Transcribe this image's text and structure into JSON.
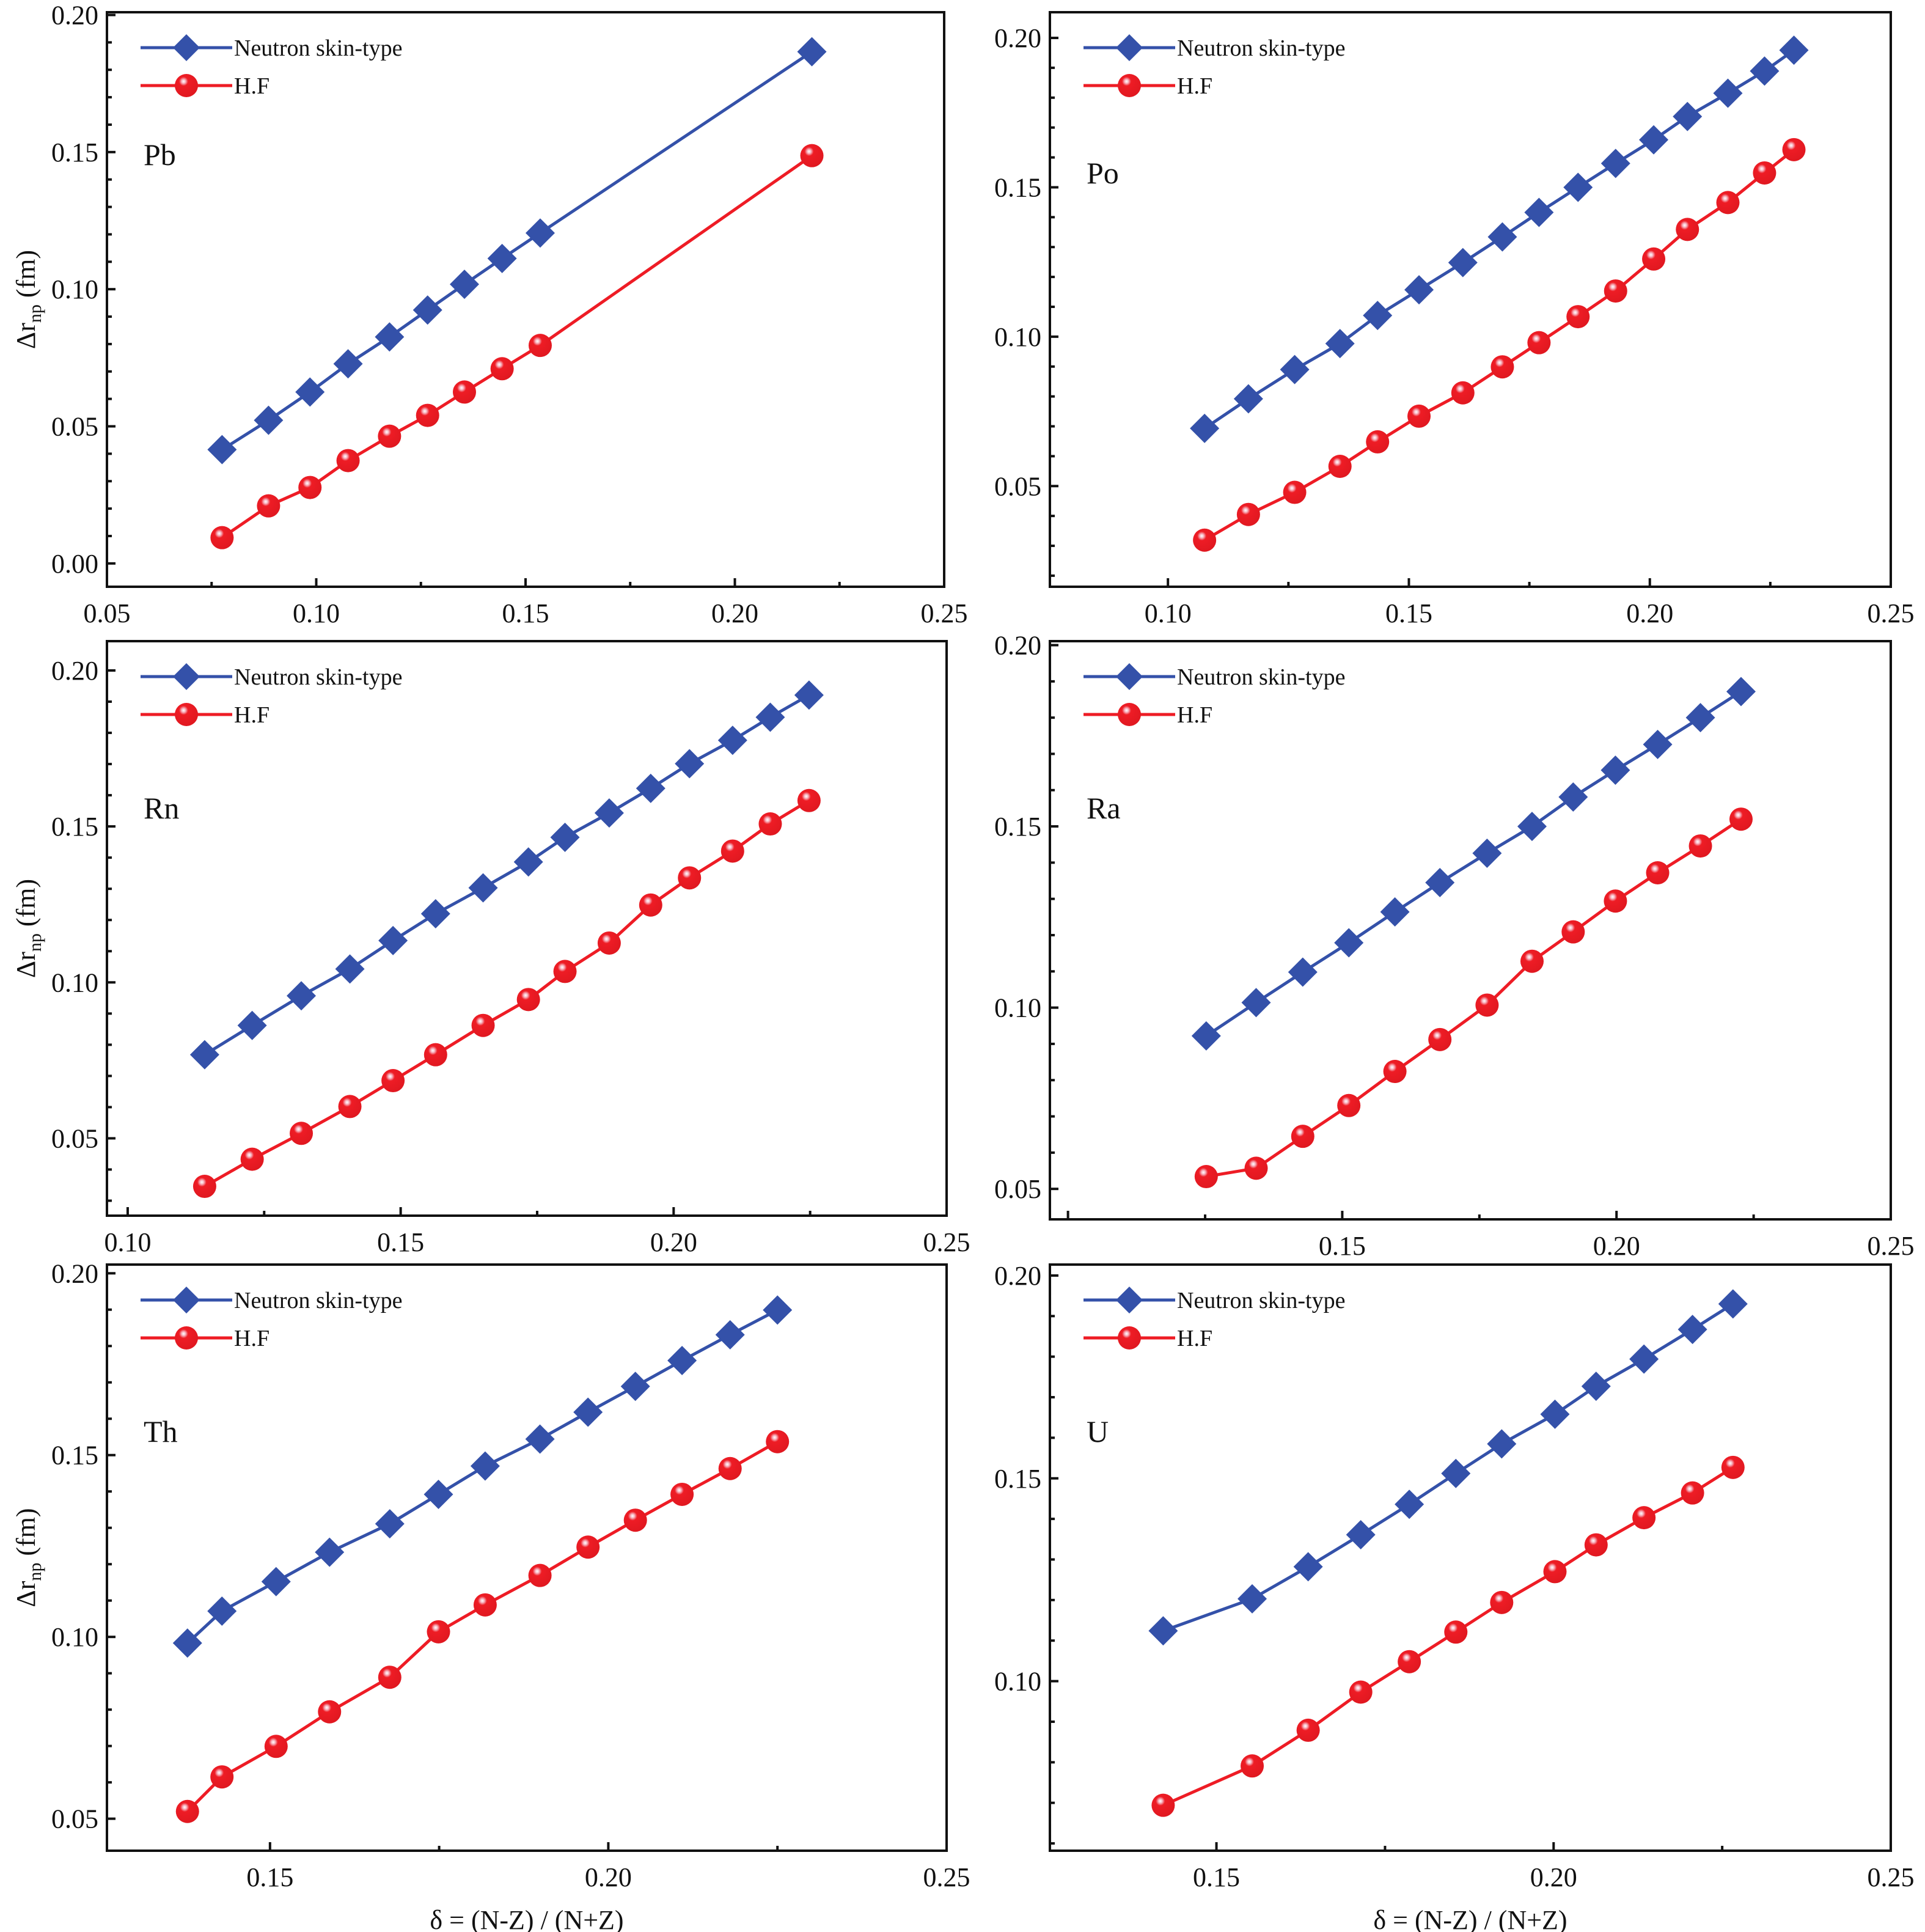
{
  "figure": {
    "x_axis_title": "δ = (N-Z) / (N+Z)",
    "y_axis_title_main": "Δr",
    "y_axis_title_sub": "np",
    "y_axis_title_unit": " (fm)",
    "series_colors": {
      "Neutron skin-type": "#3451A9",
      "H.F": "#EE1C25"
    }
  },
  "chart_data": [
    {
      "type": "line",
      "title": "Pb",
      "xlabel": "",
      "ylabel": "Δr_np (fm)",
      "xlim": [
        0.05,
        0.25
      ],
      "ylim": [
        -0.0085,
        0.201
      ],
      "xticks": [
        0.05,
        0.1,
        0.15,
        0.2,
        0.25
      ],
      "xtick_labels": [
        "0.05",
        "0.10",
        "0.15",
        "0.20",
        "0.25"
      ],
      "yticks": [
        0.0,
        0.05,
        0.1,
        0.15,
        0.2
      ],
      "ytick_labels": [
        "0.00",
        "0.05",
        "0.10",
        "0.15",
        "0.20"
      ],
      "grid": false,
      "legend": {
        "position": "top-left",
        "entries": [
          "Neutron skin-type",
          "H.F"
        ]
      },
      "series": [
        {
          "name": "Neutron skin-type",
          "marker": "diamond",
          "x": [
            0.0775,
            0.0886,
            0.0985,
            0.1076,
            0.1175,
            0.1266,
            0.1354,
            0.1444,
            0.1535,
            0.2184
          ],
          "y": [
            0.0415,
            0.0522,
            0.0625,
            0.0728,
            0.0826,
            0.0924,
            0.1018,
            0.1112,
            0.1205,
            0.1866
          ]
        },
        {
          "name": "H.F",
          "marker": "circle",
          "x": [
            0.0775,
            0.0886,
            0.0985,
            0.1076,
            0.1175,
            0.1266,
            0.1354,
            0.1444,
            0.1535,
            0.2184
          ],
          "y": [
            0.0094,
            0.021,
            0.0277,
            0.0375,
            0.0464,
            0.054,
            0.0625,
            0.071,
            0.0795,
            0.1487
          ]
        }
      ]
    },
    {
      "type": "line",
      "title": "Po",
      "xlabel": "",
      "ylabel": "",
      "xlim": [
        0.0755,
        0.25
      ],
      "ylim": [
        0.0163,
        0.2086
      ],
      "xticks": [
        0.1,
        0.15,
        0.2,
        0.25
      ],
      "xtick_labels": [
        "0.10",
        "0.15",
        "0.20",
        "0.25"
      ],
      "yticks": [
        0.05,
        0.1,
        0.15,
        0.2
      ],
      "ytick_labels": [
        "0.05",
        "0.10",
        "0.15",
        "0.20"
      ],
      "grid": false,
      "legend": {
        "position": "top-left",
        "entries": [
          "Neutron skin-type",
          "H.F"
        ]
      },
      "series": [
        {
          "name": "Neutron skin-type",
          "marker": "diamond",
          "x": [
            0.1076,
            0.1167,
            0.1263,
            0.1357,
            0.1435,
            0.1521,
            0.1612,
            0.1694,
            0.177,
            0.1851,
            0.1929,
            0.2008,
            0.2078,
            0.2162,
            0.2238,
            0.2299
          ],
          "y": [
            0.0693,
            0.0792,
            0.089,
            0.0977,
            0.1071,
            0.1157,
            0.1248,
            0.1334,
            0.1416,
            0.15,
            0.158,
            0.1659,
            0.1737,
            0.1815,
            0.1889,
            0.1959
          ]
        },
        {
          "name": "H.F",
          "marker": "circle",
          "x": [
            0.1076,
            0.1167,
            0.1263,
            0.1357,
            0.1435,
            0.1521,
            0.1612,
            0.1694,
            0.177,
            0.1851,
            0.1929,
            0.2008,
            0.2078,
            0.2162,
            0.2238,
            0.2299
          ],
          "y": [
            0.0319,
            0.0405,
            0.0479,
            0.0566,
            0.0648,
            0.0734,
            0.0812,
            0.0899,
            0.098,
            0.1067,
            0.1153,
            0.126,
            0.1359,
            0.1449,
            0.1548,
            0.1626
          ]
        }
      ]
    },
    {
      "type": "line",
      "title": "Rn",
      "xlabel": "",
      "ylabel": "Δr_np (fm)",
      "xlim": [
        0.0962,
        0.25
      ],
      "ylim": [
        0.0252,
        0.2094
      ],
      "xticks": [
        0.1,
        0.15,
        0.2,
        0.25
      ],
      "xtick_labels": [
        "0.10",
        "0.15",
        "0.20",
        "0.25"
      ],
      "yticks": [
        0.05,
        0.1,
        0.15,
        0.2
      ],
      "ytick_labels": [
        "0.05",
        "0.10",
        "0.15",
        "0.20"
      ],
      "grid": false,
      "legend": {
        "position": "top-left",
        "entries": [
          "Neutron skin-type",
          "H.F"
        ]
      },
      "series": [
        {
          "name": "Neutron skin-type",
          "marker": "diamond",
          "x": [
            0.1141,
            0.1228,
            0.1318,
            0.1407,
            0.1486,
            0.1564,
            0.1651,
            0.1734,
            0.1801,
            0.1882,
            0.1958,
            0.2029,
            0.2108,
            0.2177,
            0.2248
          ],
          "y": [
            0.0768,
            0.0862,
            0.0957,
            0.1043,
            0.1134,
            0.122,
            0.1303,
            0.1386,
            0.1465,
            0.1543,
            0.1622,
            0.1701,
            0.1776,
            0.185,
            0.1921
          ]
        },
        {
          "name": "H.F",
          "marker": "circle",
          "x": [
            0.1141,
            0.1228,
            0.1318,
            0.1407,
            0.1486,
            0.1564,
            0.1651,
            0.1734,
            0.1801,
            0.1882,
            0.1958,
            0.2029,
            0.2108,
            0.2177,
            0.2248
          ],
          "y": [
            0.0346,
            0.0433,
            0.0516,
            0.0602,
            0.0685,
            0.0768,
            0.0862,
            0.0945,
            0.1035,
            0.1126,
            0.1248,
            0.1335,
            0.1421,
            0.1508,
            0.1583
          ]
        }
      ]
    },
    {
      "type": "line",
      "title": "Ra",
      "xlabel": "",
      "ylabel": "",
      "xlim": [
        0.0967,
        0.25
      ],
      "ylim": [
        0.0416,
        0.2011
      ],
      "xticks": [
        0.15,
        0.2,
        0.25
      ],
      "xtick_labels": [
        "0.15",
        "0.20",
        "0.25"
      ],
      "yticks": [
        0.05,
        0.1,
        0.15,
        0.2
      ],
      "ytick_labels": [
        "0.05",
        "0.10",
        "0.15",
        "0.20"
      ],
      "grid": false,
      "legend": {
        "position": "top-left",
        "entries": [
          "Neutron skin-type",
          "H.F"
        ]
      },
      "series": [
        {
          "name": "Neutron skin-type",
          "marker": "diamond",
          "x": [
            0.1252,
            0.1343,
            0.1428,
            0.1512,
            0.1596,
            0.1678,
            0.1764,
            0.1846,
            0.1921,
            0.1998,
            0.2075,
            0.2153,
            0.2227
          ],
          "y": [
            0.0922,
            0.1014,
            0.1098,
            0.1179,
            0.1264,
            0.1345,
            0.1426,
            0.15,
            0.1581,
            0.1655,
            0.1726,
            0.18,
            0.1872
          ]
        },
        {
          "name": "H.F",
          "marker": "circle",
          "x": [
            0.1252,
            0.1343,
            0.1428,
            0.1512,
            0.1596,
            0.1678,
            0.1764,
            0.1846,
            0.1921,
            0.1998,
            0.2075,
            0.2153,
            0.2227
          ],
          "y": [
            0.0534,
            0.0557,
            0.0645,
            0.073,
            0.0824,
            0.0912,
            0.1007,
            0.1128,
            0.1209,
            0.1294,
            0.1372,
            0.1446,
            0.152
          ]
        }
      ]
    },
    {
      "type": "line",
      "title": "Th",
      "xlabel": "δ = (N-Z) / (N+Z)",
      "ylabel": "Δr_np (fm)",
      "xlim": [
        0.1259,
        0.25
      ],
      "ylim": [
        0.0412,
        0.2024
      ],
      "xticks": [
        0.15,
        0.2,
        0.25
      ],
      "xtick_labels": [
        "0.15",
        "0.20",
        "0.25"
      ],
      "yticks": [
        0.05,
        0.1,
        0.15,
        0.2
      ],
      "ytick_labels": [
        "0.05",
        "0.10",
        "0.15",
        "0.20"
      ],
      "grid": false,
      "legend": {
        "position": "top-left",
        "entries": [
          "Neutron skin-type",
          "H.F"
        ]
      },
      "series": [
        {
          "name": "Neutron skin-type",
          "marker": "diamond",
          "x": [
            0.1378,
            0.1429,
            0.1509,
            0.1588,
            0.1677,
            0.1749,
            0.1818,
            0.1899,
            0.197,
            0.204,
            0.2109,
            0.218,
            0.225
          ],
          "y": [
            0.0983,
            0.1071,
            0.1152,
            0.1233,
            0.1311,
            0.1392,
            0.147,
            0.1544,
            0.1618,
            0.1689,
            0.176,
            0.1831,
            0.1899
          ]
        },
        {
          "name": "H.F",
          "marker": "circle",
          "x": [
            0.1378,
            0.1429,
            0.1509,
            0.1588,
            0.1677,
            0.1749,
            0.1818,
            0.1899,
            0.197,
            0.204,
            0.2109,
            0.218,
            0.225
          ],
          "y": [
            0.052,
            0.0615,
            0.0699,
            0.0794,
            0.0889,
            0.1014,
            0.1088,
            0.1169,
            0.1247,
            0.1321,
            0.1392,
            0.1463,
            0.1537
          ]
        }
      ]
    },
    {
      "type": "line",
      "title": "U",
      "xlabel": "δ = (N-Z) / (N+Z)",
      "ylabel": "",
      "xlim": [
        0.1253,
        0.25
      ],
      "ylim": [
        0.0582,
        0.2027
      ],
      "xticks": [
        0.15,
        0.2,
        0.25
      ],
      "xtick_labels": [
        "0.15",
        "0.20",
        "0.25"
      ],
      "yticks": [
        0.1,
        0.15,
        0.2
      ],
      "ytick_labels": [
        "0.10",
        "0.15",
        "0.20"
      ],
      "grid": false,
      "legend": {
        "position": "top-left",
        "entries": [
          "Neutron skin-type",
          "H.F"
        ]
      },
      "series": [
        {
          "name": "Neutron skin-type",
          "marker": "diamond",
          "x": [
            0.1421,
            0.1553,
            0.1636,
            0.1714,
            0.1786,
            0.1855,
            0.1923,
            0.2002,
            0.2063,
            0.2134,
            0.2206,
            0.2266
          ],
          "y": [
            0.1124,
            0.1203,
            0.1282,
            0.1361,
            0.1436,
            0.1512,
            0.1585,
            0.1658,
            0.1727,
            0.1794,
            0.1867,
            0.193
          ]
        },
        {
          "name": "H.F",
          "marker": "circle",
          "x": [
            0.1421,
            0.1553,
            0.1636,
            0.1714,
            0.1786,
            0.1855,
            0.1923,
            0.2002,
            0.2063,
            0.2134,
            0.2206,
            0.2266
          ],
          "y": [
            0.0694,
            0.0791,
            0.0879,
            0.0973,
            0.1048,
            0.1121,
            0.1194,
            0.127,
            0.1336,
            0.1403,
            0.1464,
            0.1527
          ]
        }
      ]
    }
  ]
}
